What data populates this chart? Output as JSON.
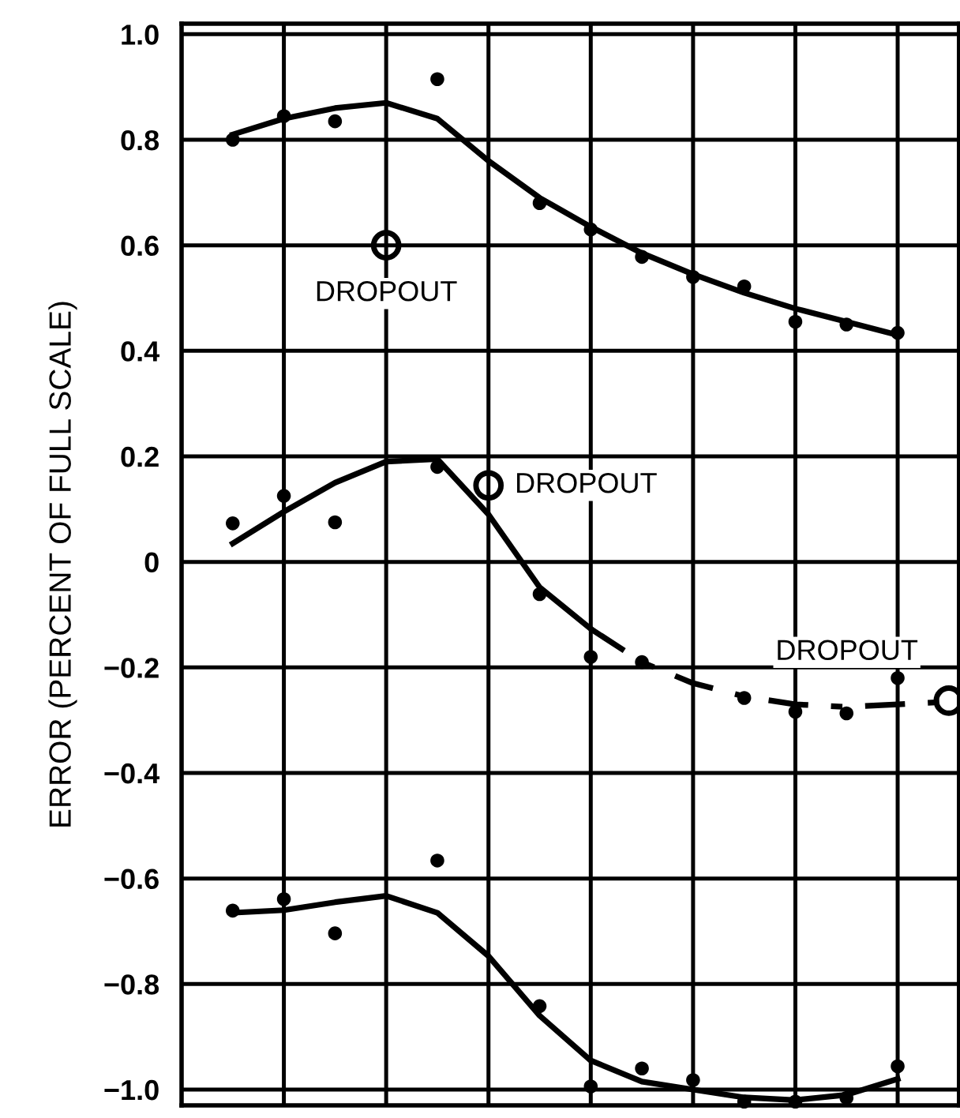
{
  "chart_data": {
    "type": "scatter",
    "ylabel": "ERROR (PERCENT OF FULL SCALE)",
    "categories": [
      null,
      null,
      null,
      null,
      null,
      null,
      null,
      null,
      null,
      null,
      null,
      null,
      null,
      null,
      null
    ],
    "ylim": [
      -1.03,
      1.02
    ],
    "yticks": [
      {
        "value": -1,
        "label": "−1.0"
      },
      {
        "value": -0.8,
        "label": "−0.8"
      },
      {
        "value": -0.6,
        "label": "−0.6"
      },
      {
        "value": -0.4,
        "label": "−0.4"
      },
      {
        "value": -0.2,
        "label": "−0.2"
      },
      {
        "value": 0,
        "label": "0"
      },
      {
        "value": 0.2,
        "label": "0.2"
      },
      {
        "value": 0.4,
        "label": "0.4"
      },
      {
        "value": 0.6,
        "label": "0.6"
      },
      {
        "value": 0.8,
        "label": "0.8"
      },
      {
        "value": 1,
        "label": "1.0"
      }
    ],
    "tick_labels": "y",
    "grid": true,
    "marker": "circle",
    "series": [
      {
        "color": "#000000",
        "values": [
          0.8,
          0.845,
          0.835,
          null,
          0.915,
          null,
          0.68,
          0.63,
          0.578,
          0.54,
          0.522,
          0.455,
          0.45,
          0.434,
          null
        ]
      },
      {
        "type": "line",
        "marker": "none",
        "line_style": "solid",
        "color": "#000000",
        "values": [
          0.81,
          0.84,
          0.86,
          0.87,
          0.84,
          0.76,
          0.69,
          0.635,
          0.585,
          0.545,
          0.51,
          0.48,
          0.455,
          0.43,
          null
        ]
      },
      {
        "color": "#000000",
        "values": [
          0.073,
          0.125,
          0.075,
          null,
          0.18,
          null,
          -0.061,
          -0.18,
          -0.19,
          null,
          -0.258,
          -0.284,
          -0.287,
          -0.22,
          null
        ]
      },
      {
        "type": "line",
        "marker": "none",
        "line_style": "solid",
        "color": "#000000",
        "values": [
          0.035,
          0.095,
          0.15,
          0.19,
          0.195,
          0.09,
          -0.048,
          -0.127,
          null,
          null,
          null,
          null,
          null,
          null,
          null
        ]
      },
      {
        "type": "line",
        "marker": "none",
        "line_style": "dashed",
        "color": "#000000",
        "values": [
          null,
          null,
          null,
          null,
          null,
          null,
          null,
          -0.127,
          -0.19,
          -0.23,
          -0.255,
          -0.27,
          -0.275,
          -0.27,
          -0.265
        ]
      },
      {
        "color": "#000000",
        "values": [
          -0.661,
          -0.639,
          -0.704,
          null,
          -0.566,
          null,
          -0.842,
          -0.994,
          -0.96,
          -0.982,
          -1.023,
          -1.023,
          -1.016,
          -0.956,
          null
        ]
      },
      {
        "type": "line",
        "marker": "none",
        "line_style": "solid",
        "color": "#000000",
        "values": [
          -0.665,
          -0.66,
          -0.645,
          -0.633,
          -0.665,
          -0.747,
          -0.86,
          -0.945,
          -0.985,
          -1.0,
          -1.015,
          -1.02,
          -1.01,
          -0.98,
          null
        ]
      },
      {
        "color": "#000000",
        "values": [
          null,
          null,
          null,
          0.6,
          null,
          0.145,
          null,
          null,
          null,
          null,
          null,
          null,
          null,
          null,
          -0.263
        ]
      }
    ],
    "annotations": [
      "DROPOUT",
      "DROPOUT",
      "DROPOUT"
    ]
  }
}
